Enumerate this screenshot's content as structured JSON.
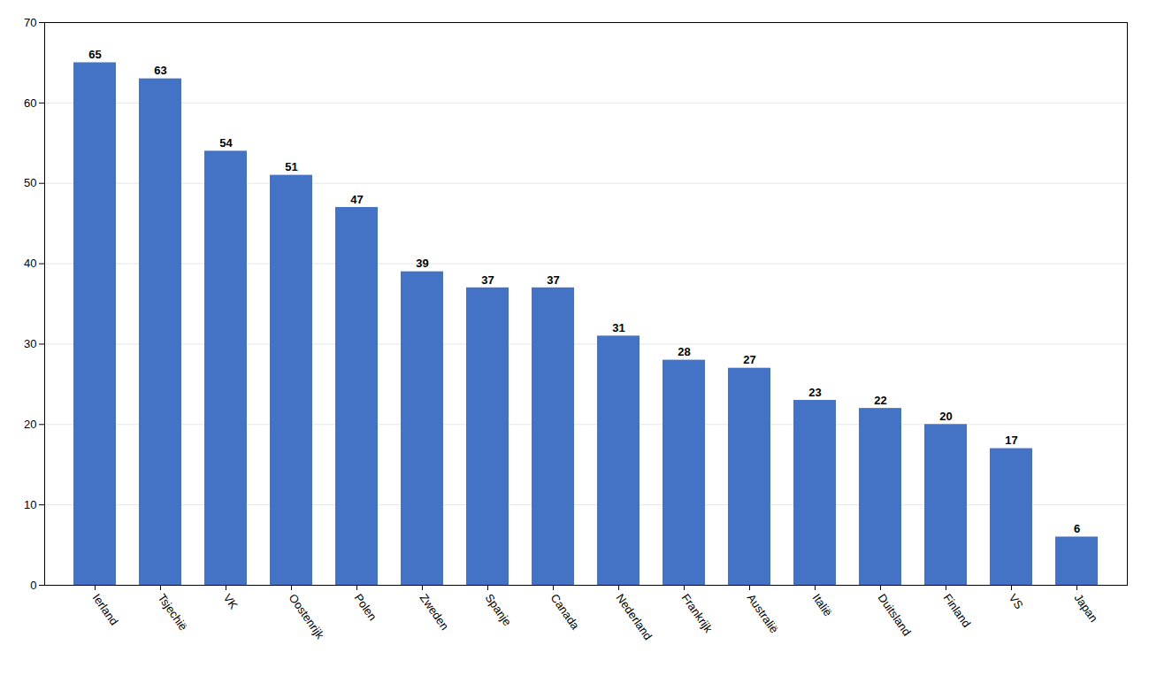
{
  "chart_data": {
    "type": "bar",
    "categories": [
      "Ierland",
      "Tsjechië",
      "VK",
      "Oostenrijk",
      "Polen",
      "Zweden",
      "Spanje",
      "Canada",
      "Nederland",
      "Frankrijk",
      "Australië",
      "Italië",
      "Duitsland",
      "Finland",
      "VS",
      "Japan"
    ],
    "values": [
      65,
      63,
      54,
      51,
      47,
      39,
      37,
      37,
      31,
      28,
      27,
      23,
      22,
      20,
      17,
      6
    ],
    "color": "#4472C4",
    "ylim": [
      0,
      70
    ],
    "yticks": [
      0,
      10,
      20,
      30,
      40,
      50,
      60,
      70
    ],
    "grid": true,
    "data_labels": true
  }
}
